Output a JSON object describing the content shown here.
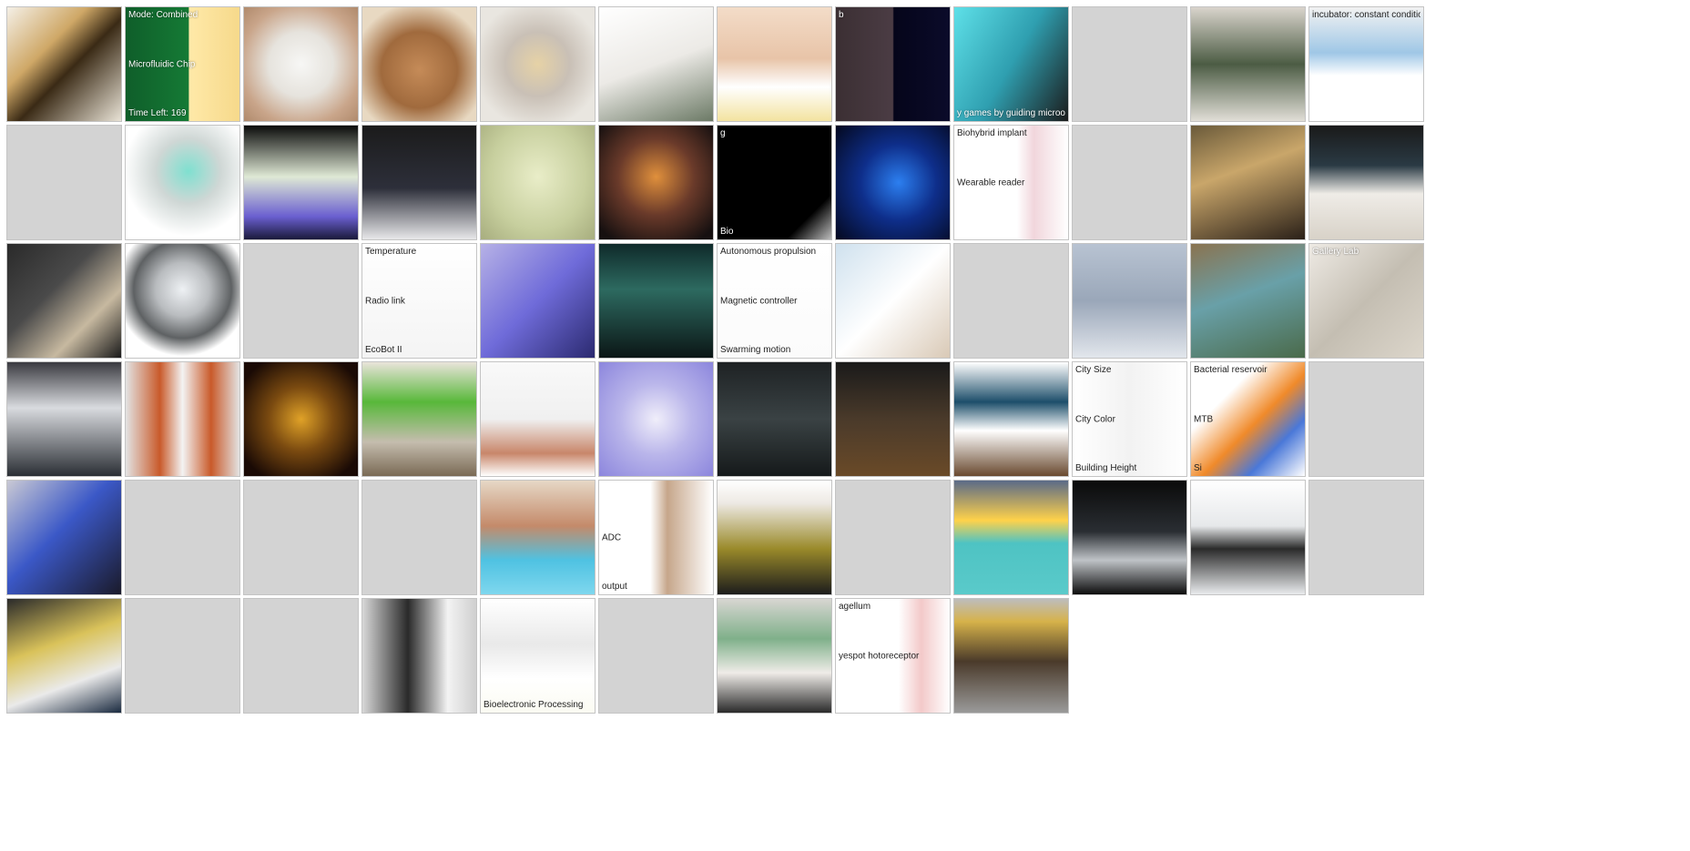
{
  "gallery": {
    "columns": 12,
    "rows": 6,
    "tiles": [
      {
        "kind": "photo",
        "bg": "linear-gradient(135deg,#f4efe6 0%,#cfa867 35%,#3a2a15 55%,#e9e3d6 100%)"
      },
      {
        "kind": "figure",
        "bg": "linear-gradient(90deg,#0f5e2a 0%,#157a35 55%,#ffe9a8 56%,#f6d98b 100%)",
        "labels": {
          "top": "Mode: Combined",
          "mid": "Microfluidic Chip",
          "bottom": "Time Left: 169"
        }
      },
      {
        "kind": "photo",
        "bg": "radial-gradient(circle at 50% 50%,#f7f7f5 0%,#e6e3dd 40%,#c9a58a 75%,#b08a6c 100%)"
      },
      {
        "kind": "photo",
        "bg": "radial-gradient(circle at 50% 55%,#c58b58 0%,#a06a3d 45%,#e8d9c2 80%)"
      },
      {
        "kind": "photo",
        "bg": "radial-gradient(circle at 50% 50%,#e6d2a6 0%,#c9c0b6 40%,#e9e6e0 80%)"
      },
      {
        "kind": "photo",
        "bg": "linear-gradient(160deg,#ffffff 0%,#eceae6 50%,#6c7a66 100%)"
      },
      {
        "kind": "photo",
        "bg": "linear-gradient(180deg,#f3dcc8 0%,#e8c4a8 45%,#ffffff 70%,#f3e3a0 100%)"
      },
      {
        "kind": "figure",
        "bg": "linear-gradient(90deg,#3b2f33 0%,#4b3c44 50%,#05051a 51%,#0b0b2a 100%)",
        "labels": {
          "top": "b"
        }
      },
      {
        "kind": "figure",
        "bg": "linear-gradient(120deg,#5ee0e8 0%,#2f9fb0 50%,#1b1b1b 100%)",
        "labels": {
          "bottom": "y games by guiding microorganisms"
        }
      },
      {
        "kind": "empty"
      },
      {
        "kind": "photo",
        "bg": "linear-gradient(180deg,#d9d4cc 0%,#4c5c44 50%,#e1ded7 100%)"
      },
      {
        "kind": "figure",
        "bg": "linear-gradient(180deg,#f2f2f2 0%,#9fc7e6 40%,#ffffff 60%)",
        "labels": {
          "top": "incubator: constant conditions"
        }
      },
      {
        "kind": "empty"
      },
      {
        "kind": "photo",
        "bg": "radial-gradient(circle at 55% 40%,#7fe0d0 0%,#cfd7d5 35%,#ffffff 70%)"
      },
      {
        "kind": "photo",
        "bg": "linear-gradient(180deg,#0a0a0a 0%,#dfe9d5 45%,#6a5fd0 80%,#1a1a3a 100%)"
      },
      {
        "kind": "photo",
        "bg": "linear-gradient(180deg,#1b1b1b 0%,#2d2f3a 55%,#e8e8ea 100%)"
      },
      {
        "kind": "photo",
        "bg": "radial-gradient(ellipse at 50% 45%,#e9edc8 0%,#c7cf9e 60%,#a7ad7e 100%)"
      },
      {
        "kind": "photo",
        "bg": "radial-gradient(circle at 50% 45%,#e0903c 0%,#6a3a2a 45%,#161010 90%)"
      },
      {
        "kind": "figure",
        "bg": "linear-gradient(135deg,#000000 0%,#000000 80%,#bdbdbd 100%)",
        "labels": {
          "top": "g",
          "bottom": "Bio"
        }
      },
      {
        "kind": "photo",
        "bg": "radial-gradient(circle at 55% 50%,#2c7ff0 0%,#0e2e8a 45%,#04081e 100%)"
      },
      {
        "kind": "figure",
        "bg": "linear-gradient(90deg,#ffffff 0%,#ffffff 55%,#f1d6dc 70%,#ffffff 100%)",
        "labels": {
          "top": "Biohybrid implant",
          "mid": "Wearable reader"
        }
      },
      {
        "kind": "empty"
      },
      {
        "kind": "photo",
        "bg": "linear-gradient(160deg,#6a5a3a 0%,#c9a66a 40%,#2a2018 100%)"
      },
      {
        "kind": "photo",
        "bg": "linear-gradient(180deg,#1a1a1a 0%,#2a3a44 35%,#efece7 60%,#d8d2c8 100%)"
      },
      {
        "kind": "photo",
        "bg": "linear-gradient(135deg,#2a2a2a 0%,#4a4a4a 40%,#c7b9a0 70%,#1a1a1a 100%)"
      },
      {
        "kind": "photo",
        "bg": "radial-gradient(circle at 50% 40%,#eef1f4 0%,#b9bcbf 30%,#5e6163 55%,#ffffff 75%)"
      },
      {
        "kind": "empty"
      },
      {
        "kind": "figure",
        "bg": "linear-gradient(180deg,#ffffff 0%,#f4f4f4 100%)",
        "labels": {
          "top": "Temperature",
          "mid": "Radio link",
          "bottom": "EcoBot II"
        }
      },
      {
        "kind": "photo",
        "bg": "linear-gradient(135deg,#b6b1e6 0%,#6f6bd9 50%,#2b2a70 100%)"
      },
      {
        "kind": "photo",
        "bg": "linear-gradient(180deg,#0f2a2a 0%,#2d6a60 40%,#0b1616 100%)"
      },
      {
        "kind": "figure",
        "bg": "linear-gradient(180deg,#ffffff 0%,#fbfbfb 100%)",
        "labels": {
          "top": "Autonomous propulsion",
          "mid": "Magnetic controller",
          "bottom": "Swarming motion"
        }
      },
      {
        "kind": "figure",
        "bg": "linear-gradient(135deg,#cfe1ee 0%,#ffffff 50%,#d9c9b6 100%)"
      },
      {
        "kind": "empty"
      },
      {
        "kind": "photo",
        "bg": "linear-gradient(180deg,#b8c3d2 0%,#9aa7b9 50%,#e2e6ec 100%)"
      },
      {
        "kind": "photo",
        "bg": "linear-gradient(160deg,#8a7350 0%,#69a0a8 45%,#4a6a4a 100%)"
      },
      {
        "kind": "photo",
        "bg": "linear-gradient(135deg,#eeeae4 0%,#c4beb2 50%,#dcd6cb 100%)",
        "labels": {
          "top": "Gallery Lab"
        }
      },
      {
        "kind": "photo",
        "bg": "linear-gradient(180deg,#3a3a40 0%,#d9dbdf 40%,#2b2f35 100%)"
      },
      {
        "kind": "figure",
        "bg": "linear-gradient(90deg,#e3e3e3 0%,#c95a2a 30%,#f3f3f3 50%,#c95a2a 75%,#e3e3e3 100%)"
      },
      {
        "kind": "photo",
        "bg": "radial-gradient(circle at 50% 50%,#e0a228 0%,#7a4a10 40%,#1a0a05 85%)"
      },
      {
        "kind": "photo",
        "bg": "linear-gradient(180deg,#e9e4da 0%,#58b83a 35%,#c5bdae 70%,#7a6a55 100%)"
      },
      {
        "kind": "photo",
        "bg": "linear-gradient(180deg,#f9f9f9 0%,#f0f0f0 50%,#c8866a 80%,#ffffff 100%)"
      },
      {
        "kind": "photo",
        "bg": "radial-gradient(circle at 50% 50%,#f0eefa 0%,#b9b5ea 45%,#8c86dd 100%)"
      },
      {
        "kind": "photo",
        "bg": "linear-gradient(180deg,#1e2224 0%,#3a4244 50%,#15191a 100%)"
      },
      {
        "kind": "photo",
        "bg": "linear-gradient(180deg,#1a1a1a 0%,#4a3a2a 50%,#6a4a28 100%)"
      },
      {
        "kind": "photo",
        "bg": "linear-gradient(180deg,#ffffff 0%,#1d4e6a 35%,#ffffff 60%,#6a4a30 100%)"
      },
      {
        "kind": "figure",
        "bg": "linear-gradient(90deg,#ffffff 0%,#f2f2f2 50%,#ffffff 100%)",
        "labels": {
          "top": "City Size",
          "mid": "City Color",
          "bottom": "Building Height"
        }
      },
      {
        "kind": "figure",
        "bg": "linear-gradient(135deg,#ffffff 0%,#ffffff 30%,#f08a2a 55%,#4a78d8 75%,#ffffff 100%)",
        "labels": {
          "top": "Bacterial reservoir",
          "mid": "MTB",
          "bottom": "Si"
        }
      },
      {
        "kind": "empty"
      },
      {
        "kind": "photo",
        "bg": "linear-gradient(135deg,#c9c9d4 0%,#3b58c7 45%,#1a1a2a 100%)"
      },
      {
        "kind": "empty"
      },
      {
        "kind": "empty"
      },
      {
        "kind": "empty"
      },
      {
        "kind": "photo",
        "bg": "linear-gradient(180deg,#e6d8c6 0%,#c48a6a 40%,#4fc2e2 70%,#7fd7ee 100%)"
      },
      {
        "kind": "figure",
        "bg": "linear-gradient(90deg,#ffffff 0%,#ffffff 45%,#c6a68a 60%,#ffffff 100%)",
        "labels": {
          "mid": "ADC",
          "bottom": "output"
        }
      },
      {
        "kind": "photo",
        "bg": "linear-gradient(180deg,#ffffff 0%,#ede9e3 20%,#9a8a2a 60%,#1c1c1c 100%)"
      },
      {
        "kind": "empty"
      },
      {
        "kind": "figure",
        "bg": "linear-gradient(180deg,#5a6a88 0%,#ffd24a 35%,#4ec3c3 55%,#5acaca 100%)"
      },
      {
        "kind": "photo",
        "bg": "linear-gradient(180deg,#0a0a0a 0%,#2a2e33 45%,#bfc3c7 70%,#0d0d0d 100%)"
      },
      {
        "kind": "photo",
        "bg": "linear-gradient(180deg,#ffffff 0%,#e6e8ea 40%,#2a2a2a 60%,#e9ebed 100%)"
      },
      {
        "kind": "empty"
      },
      {
        "kind": "photo",
        "bg": "linear-gradient(160deg,#2a2a2a 0%,#d9c25a 40%,#eaeaea 70%,#1a2a40 100%)"
      },
      {
        "kind": "empty"
      },
      {
        "kind": "empty"
      },
      {
        "kind": "photo",
        "bg": "linear-gradient(90deg,#d8d8d8 0%,#2a2a2a 40%,#f3f3f3 75%,#cfcfcf 100%)"
      },
      {
        "kind": "figure",
        "bg": "linear-gradient(180deg,#ffffff 0%,#e9e9e9 40%,#ffffff 70%,#fbfbf2 100%)",
        "labels": {
          "bottom": "Bioelectronic Processing"
        }
      },
      {
        "kind": "empty"
      },
      {
        "kind": "photo",
        "bg": "linear-gradient(180deg,#d8d6d2 0%,#7fb08a 35%,#efece8 65%,#2a2a2a 100%)"
      },
      {
        "kind": "figure",
        "bg": "linear-gradient(90deg,#ffffff 0%,#ffffff 55%,#f3c9c9 75%,#ffffff 100%)",
        "labels": {
          "top": "agellum",
          "mid": "yespot hotoreceptor"
        }
      },
      {
        "kind": "photo",
        "bg": "linear-gradient(180deg,#bdbdbd 0%,#d6b24a 20%,#4a3a2a 55%,#9a9a9a 100%)"
      },
      {
        "kind": "blank"
      },
      {
        "kind": "blank"
      },
      {
        "kind": "blank"
      }
    ]
  }
}
